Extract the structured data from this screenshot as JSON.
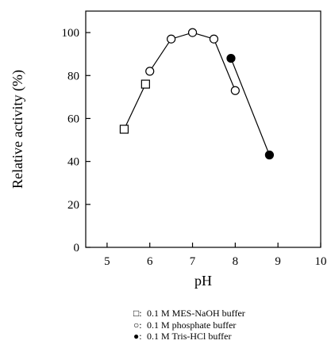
{
  "chart_data": {
    "type": "line",
    "title": "",
    "xlabel": "pH",
    "ylabel": "Relative activity (%)",
    "xlim": [
      4.5,
      10
    ],
    "ylim": [
      0,
      110
    ],
    "x_ticks": [
      "5",
      "6",
      "7",
      "8",
      "9",
      "10"
    ],
    "x_tick_values": [
      5,
      6,
      7,
      8,
      9,
      10
    ],
    "y_ticks": [
      "0",
      "20",
      "40",
      "60",
      "80",
      "100"
    ],
    "y_tick_values": [
      0,
      20,
      40,
      60,
      80,
      100
    ],
    "grid": false,
    "legend_position": "bottom",
    "series": [
      {
        "name": "0.1 M MES-NaOH buffer",
        "marker": "square-open",
        "x": [
          5.4,
          5.9
        ],
        "y": [
          55,
          76
        ]
      },
      {
        "name": "0.1 M phosphate buffer",
        "marker": "circle-open",
        "x": [
          6.0,
          6.5,
          7.0,
          7.5,
          8.0
        ],
        "y": [
          82,
          97,
          100,
          97,
          73
        ]
      },
      {
        "name": "0.1 M Tris-HCl buffer",
        "marker": "circle-filled",
        "x": [
          7.9,
          8.8
        ],
        "y": [
          88,
          43
        ]
      }
    ]
  },
  "legend": {
    "entries": [
      {
        "symbol": "□:",
        "label": "0.1 M MES-NaOH buffer"
      },
      {
        "symbol": "○:",
        "label": "0.1 M phosphate buffer"
      },
      {
        "symbol": "●:",
        "label": "0.1 M Tris-HCl buffer"
      }
    ]
  }
}
